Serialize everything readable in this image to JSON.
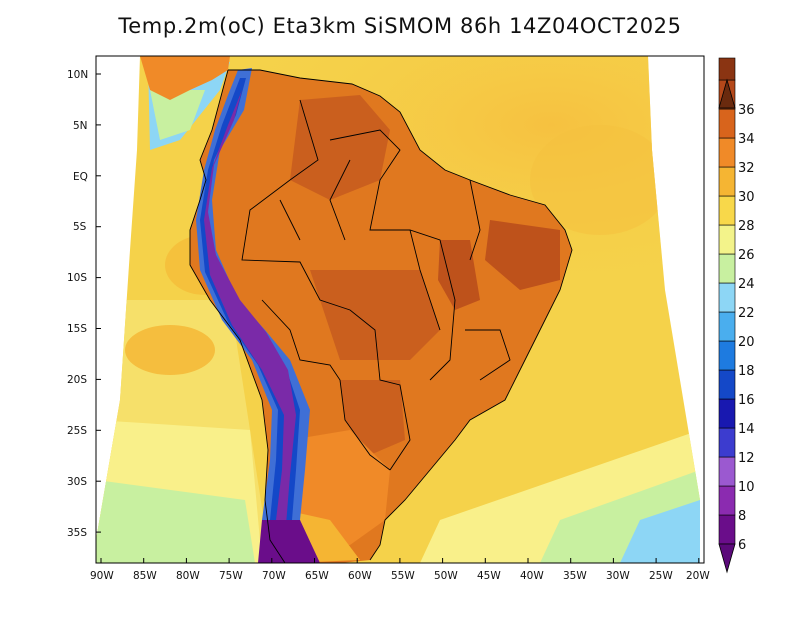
{
  "title": "Temp.2m(oC) Eta3km SiSMOM 86h 14Z04OCT2025",
  "lat_labels": [
    "10N",
    "5N",
    "EQ",
    "5S",
    "10S",
    "15S",
    "20S",
    "25S",
    "30S",
    "35S"
  ],
  "lon_labels": [
    "90W",
    "85W",
    "80W",
    "75W",
    "70W",
    "65W",
    "60W",
    "55W",
    "50W",
    "45W",
    "40W",
    "35W",
    "30W",
    "25W",
    "20W"
  ],
  "colorbar": {
    "labels": [
      "6",
      "8",
      "10",
      "12",
      "14",
      "16",
      "18",
      "20",
      "22",
      "24",
      "26",
      "28",
      "30",
      "32",
      "34",
      "36"
    ],
    "colors": [
      "#6a0d8a",
      "#8b2bb0",
      "#9b59d0",
      "#3c3ccf",
      "#1818b0",
      "#1448c8",
      "#1e7be0",
      "#4aaeee",
      "#8dd6f5",
      "#c8f0a0",
      "#f3f38a",
      "#f8d84a",
      "#f5b533",
      "#f08a28",
      "#d8641c",
      "#b5481a",
      "#8a3412"
    ],
    "min_arrow_color": "#5b0a7a",
    "max_arrow_color": "#6a2a0e"
  },
  "field_colors": {
    "ocean_north": "#f5d24a",
    "ocean_south": "#f7e470",
    "ocean_cold_coast": "#f9f08a",
    "ocean_far_south": "#c8f0a0",
    "land_hot": "#e0781f",
    "land_hotter": "#c65a1e",
    "andes_cold": "#7a2aa8",
    "andes_mid": "#3f6fd6"
  }
}
